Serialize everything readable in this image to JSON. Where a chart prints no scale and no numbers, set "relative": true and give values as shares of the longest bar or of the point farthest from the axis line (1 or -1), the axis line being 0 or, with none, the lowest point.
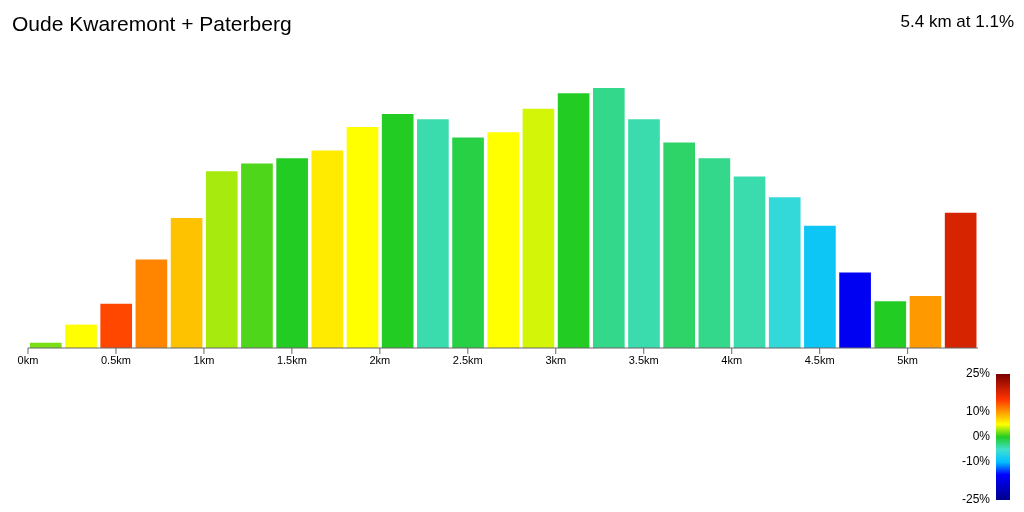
{
  "chart_data": {
    "type": "bar",
    "title": "Oude Kwaremont + Paterberg",
    "annotations": [
      "5.4 km at 1.1%"
    ],
    "relative": true,
    "x": [
      0.1,
      0.3,
      0.5,
      0.7,
      0.9,
      1.1,
      1.3,
      1.5,
      1.7,
      1.9,
      2.1,
      2.3,
      2.5,
      2.7,
      2.9,
      3.1,
      3.3,
      3.5,
      3.7,
      3.9,
      4.1,
      4.3,
      4.5,
      4.7,
      4.9,
      5.1,
      5.3
    ],
    "values": [
      0.02,
      0.09,
      0.17,
      0.34,
      0.5,
      0.68,
      0.71,
      0.73,
      0.76,
      0.85,
      0.9,
      0.88,
      0.81,
      0.83,
      0.92,
      0.98,
      1,
      0.88,
      0.79,
      0.73,
      0.66,
      0.58,
      0.47,
      0.29,
      0.18,
      0.2,
      0.52
    ],
    "cvalues": [
      2,
      5,
      14,
      11,
      8,
      3,
      1,
      0,
      6,
      5,
      0,
      -4,
      -1,
      5,
      4,
      0,
      -3,
      -4,
      -2,
      -3,
      -4,
      -6,
      -9,
      -16,
      0,
      10,
      18
    ],
    "xlim": [
      0,
      5.4
    ],
    "xticks": [
      {
        "value": 0,
        "label": "0km"
      },
      {
        "value": 0.5,
        "label": "0.5km"
      },
      {
        "value": 1,
        "label": "1km"
      },
      {
        "value": 1.5,
        "label": "1.5km"
      },
      {
        "value": 2,
        "label": "2km"
      },
      {
        "value": 2.5,
        "label": "2.5km"
      },
      {
        "value": 3,
        "label": "3km"
      },
      {
        "value": 3.5,
        "label": "3.5km"
      },
      {
        "value": 4,
        "label": "4km"
      },
      {
        "value": 4.5,
        "label": "4.5km"
      },
      {
        "value": 5,
        "label": "5km"
      }
    ],
    "clim": [
      -25,
      25
    ],
    "cticks": [
      {
        "value": 25,
        "label": "25%"
      },
      {
        "value": 10,
        "label": "10%"
      },
      {
        "value": 0,
        "label": "0%"
      },
      {
        "value": -10,
        "label": "-10%"
      },
      {
        "value": -25,
        "label": "-25%"
      }
    ],
    "grid": false,
    "legend": false
  }
}
